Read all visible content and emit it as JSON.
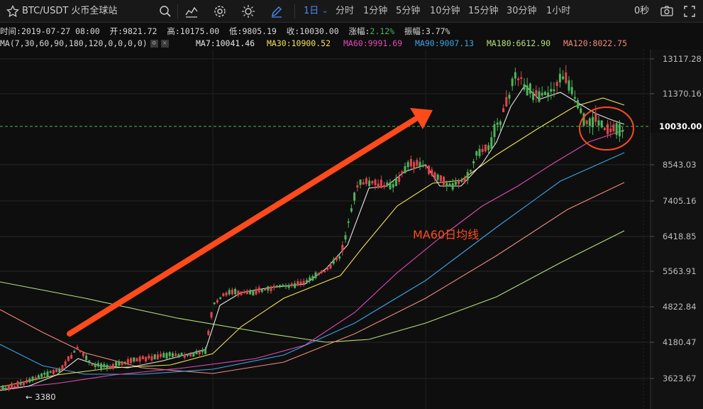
{
  "toolbar": {
    "pair": "BTC/USDT 火币全球站",
    "active_interval": "1日",
    "intervals": [
      "分时",
      "1分钟",
      "5分钟",
      "10分钟",
      "15分钟",
      "30分钟",
      "1小时"
    ],
    "countdown": "0秒",
    "icons": [
      "star-icon",
      "search-icon",
      "indicator-icon",
      "settings-icon",
      "theme-icon",
      "draw-icon",
      "camera-icon",
      "fullscreen-icon"
    ]
  },
  "info": {
    "time_label": "时间:",
    "time": "2019-07-27 08:00",
    "open_label": "开:",
    "open": "9821.72",
    "high_label": "高:",
    "high": "10175.00",
    "low_label": "低:",
    "low": "9805.19",
    "close_label": "收:",
    "close": "10030.00",
    "change_label": "涨幅:",
    "change": "2.12%",
    "amp_label": "振幅:",
    "amp": "3.77%"
  },
  "ma_legend": {
    "title": "MA(7,30,60,90,180,120,0,0,0,0)",
    "items": [
      {
        "label": "MA7:10041.46",
        "color": "#e8e8e8"
      },
      {
        "label": "MA30:10900.52",
        "color": "#f2e05a"
      },
      {
        "label": "MA60:9991.69",
        "color": "#e24bb5"
      },
      {
        "label": "MA90:9007.13",
        "color": "#3ba4e8"
      },
      {
        "label": "MA180:6612.90",
        "color": "#b6e07a"
      },
      {
        "label": "MA120:8022.75",
        "color": "#f08a7a"
      }
    ]
  },
  "annotation": {
    "text": "MA60日均线",
    "color": "#ff4a1c"
  },
  "chart_data": {
    "type": "candlestick",
    "y_ticks": [
      "13117.28",
      "11370.16",
      "8543.03",
      "7405.16",
      "6418.85",
      "5563.91",
      "4822.84",
      "4180.47",
      "3623.67"
    ],
    "current_price": "10030.00",
    "low_marker": "← 3380",
    "colors": {
      "up": "#4fb35a",
      "down": "#e0444d",
      "grid": "#262626"
    }
  }
}
